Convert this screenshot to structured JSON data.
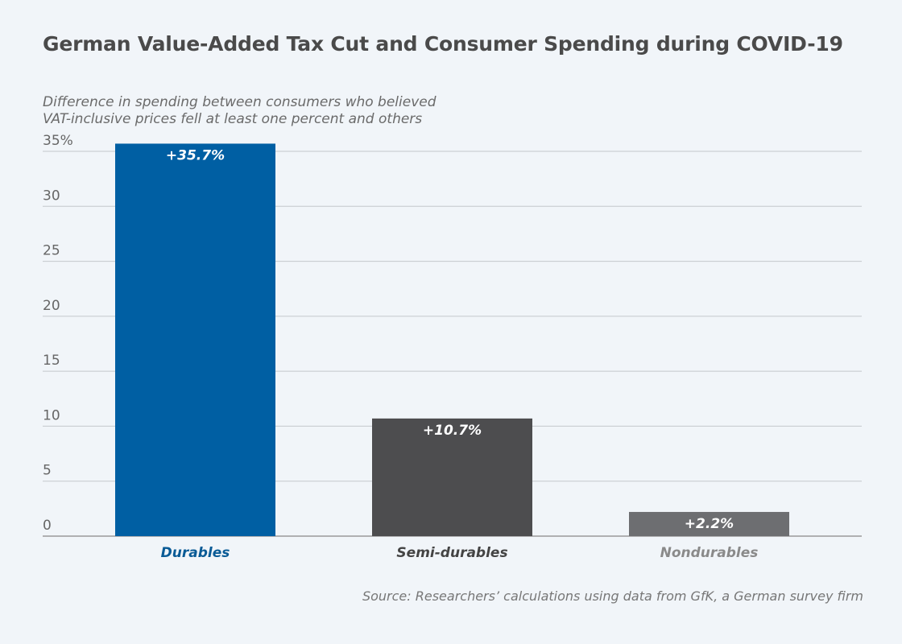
{
  "chart_data": {
    "type": "bar",
    "title": "German Value-Added Tax Cut and Consumer Spending during COVID-19",
    "subtitle": "Difference in spending between consumers who believed\nVAT-inclusive prices fell at least one percent and others",
    "categories": [
      "Durables",
      "Semi-durables",
      "Nondurables"
    ],
    "values": [
      35.7,
      10.7,
      2.2
    ],
    "data_labels": [
      "+35.7%",
      "+10.7%",
      "+2.2%"
    ],
    "bar_colors": [
      "#005fa3",
      "#4d4d4f",
      "#6d6e71"
    ],
    "category_label_colors": [
      "#0a5b96",
      "#444444",
      "#8a8a8a"
    ],
    "y_ticks": [
      0,
      5,
      10,
      15,
      20,
      25,
      30,
      35
    ],
    "y_tick_labels": [
      "0",
      "5",
      "10",
      "15",
      "20",
      "25",
      "30",
      "35%"
    ],
    "ylim": [
      0,
      35
    ],
    "grid": true,
    "source": "Source: Researchers’ calculations using data from GfK, a German survey firm"
  }
}
